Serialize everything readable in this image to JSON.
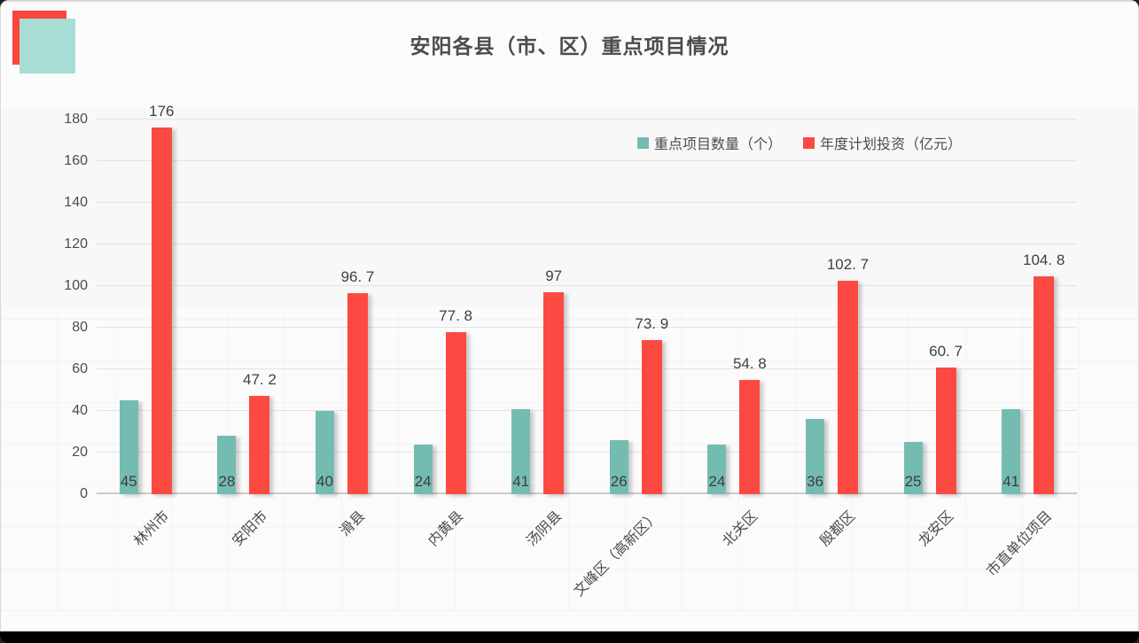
{
  "title": "安阳各县（市、区）重点项目情况",
  "colors": {
    "series_projects": "#74bcb2",
    "series_investment": "#fc4a42",
    "logo_red": "#f9453c",
    "logo_teal": "#a7ddd5",
    "text": "#4c4c4c",
    "gridline": "#e2e2e2",
    "axis_line": "#cbcbcb",
    "card_background": "#fbfbfb",
    "bottom_strip": "#000000"
  },
  "chart_data": {
    "type": "bar",
    "title": "安阳各县（市、区）重点项目情况",
    "categories": [
      "林州市",
      "安阳市",
      "滑县",
      "内黄县",
      "汤阴县",
      "文峰区（高新区）",
      "北关区",
      "殷都区",
      "龙安区",
      "市直单位项目"
    ],
    "series": [
      {
        "name": "重点项目数量（个）",
        "color": "#74bcb2",
        "values": [
          45,
          28,
          40,
          24,
          41,
          26,
          24,
          36,
          25,
          41
        ],
        "labels": [
          "45",
          "28",
          "40",
          "24",
          "41",
          "26",
          "24",
          "36",
          "25",
          "41"
        ],
        "label_position": "inside-bottom"
      },
      {
        "name": "年度计划投资（亿元）",
        "color": "#fc4a42",
        "values": [
          176,
          47.2,
          96.7,
          77.8,
          97,
          73.9,
          54.8,
          102.7,
          60.7,
          104.8
        ],
        "labels": [
          "176",
          "47. 2",
          "96. 7",
          "77. 8",
          "97",
          "73. 9",
          "54. 8",
          "102. 7",
          "60. 7",
          "104. 8"
        ],
        "label_position": "above-top"
      }
    ],
    "y_axis": {
      "min": 0,
      "max": 180,
      "step": 20,
      "ticks": [
        "0",
        "20",
        "40",
        "60",
        "80",
        "100",
        "120",
        "140",
        "160",
        "180"
      ]
    },
    "x_label_rotation": -45,
    "grid": true,
    "legend_position": "top-right"
  }
}
